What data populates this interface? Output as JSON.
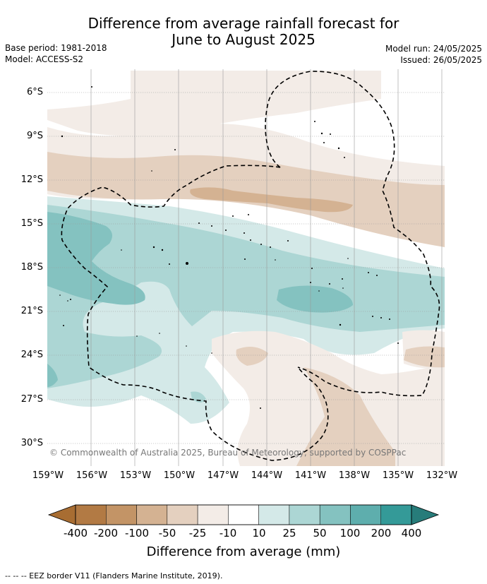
{
  "title": {
    "line1": "Difference from average rainfall forecast for",
    "line2": "June to August 2025"
  },
  "meta": {
    "base_period": "Base period: 1981-2018",
    "model": "Model: ACCESS-S2",
    "model_run": "Model run: 24/05/2025",
    "issued": "Issued: 26/05/2025"
  },
  "lat_labels": [
    "6°S",
    "9°S",
    "12°S",
    "15°S",
    "18°S",
    "21°S",
    "24°S",
    "27°S",
    "30°S"
  ],
  "lon_labels": [
    "159°W",
    "156°W",
    "153°W",
    "150°W",
    "147°W",
    "144°W",
    "141°W",
    "138°W",
    "135°W",
    "132°W"
  ],
  "copyright": "© Commonwealth of Australia 2025, Bureau of Meteorology, supported by COSPPac",
  "legend": {
    "title": "Difference from average (mm)",
    "ticks": [
      "-400",
      "-200",
      "-100",
      "-50",
      "-25",
      "-10",
      "10",
      "25",
      "50",
      "100",
      "200",
      "400"
    ],
    "colors": [
      "#a86d32",
      "#b27a44",
      "#c39466",
      "#d4b292",
      "#e4d0bf",
      "#f3ece7",
      "#ffffff",
      "#d4e9e8",
      "#acd6d4",
      "#84c2c0",
      "#5eaead",
      "#349a98",
      "#277c7a"
    ]
  },
  "footnote": "-- -- -- EEZ border V11 (Flanders Marine Institute, 2019)."
}
